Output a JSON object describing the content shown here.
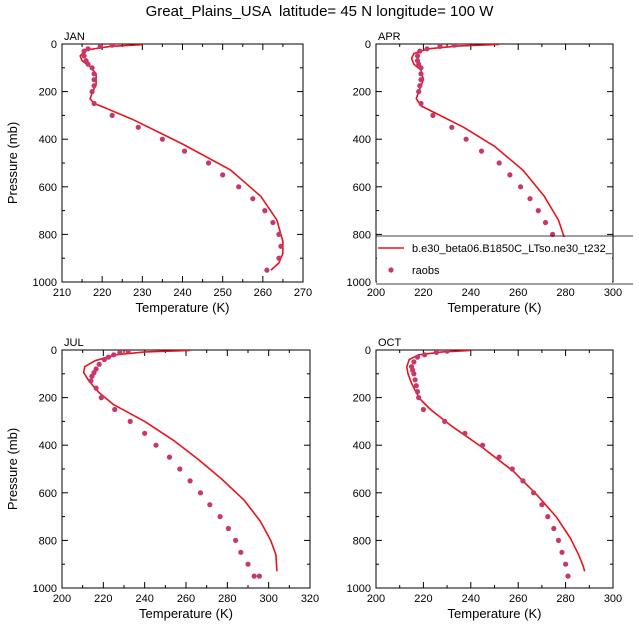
{
  "figure_title": "Great_Plains_USA  latitude= 45 N longitude= 100 W",
  "colors": {
    "model_line": "#e8141b",
    "raobs_marker": "#c8366a"
  },
  "legend": {
    "model_label": "b.e30_beta06.B1850C_LTso.ne30_t232_",
    "obs_label": "raobs",
    "placement": "right, lower half of APR panel"
  },
  "chart_data": [
    {
      "type": "line",
      "panel_label": "JAN",
      "xlabel": "Temperature (K)",
      "ylabel": "Pressure (mb)",
      "xlim": [
        210,
        270
      ],
      "xticks": [
        210,
        220,
        230,
        240,
        250,
        260,
        270
      ],
      "ylim": [
        1000,
        0
      ],
      "yticks": [
        0,
        200,
        400,
        600,
        800,
        1000
      ],
      "series": [
        {
          "name": "b.e30_beta06.B1850C_LTso.ne30_t232_",
          "style": "line",
          "x": [
            230,
            222,
            216,
            214.5,
            215,
            217,
            218.5,
            218.5,
            217.5,
            217,
            218,
            221,
            228,
            240,
            252,
            259.5,
            263.5,
            265,
            265,
            264,
            262
          ],
          "y": [
            3,
            10,
            25,
            50,
            70,
            95,
            125,
            170,
            205,
            230,
            250,
            270,
            320,
            420,
            530,
            640,
            740,
            830,
            880,
            920,
            950
          ]
        },
        {
          "name": "raobs",
          "style": "markers",
          "x": [
            222.5,
            219.5,
            216.5,
            215.5,
            215.5,
            216,
            216.5,
            217.5,
            218,
            218,
            218,
            217.5,
            218,
            222.5,
            229,
            235,
            240.5,
            246.5,
            250,
            254,
            257.5,
            260.5,
            262.5,
            264,
            264.5,
            264,
            261
          ],
          "y": [
            5,
            10,
            20,
            30,
            50,
            70,
            85,
            100,
            125,
            150,
            175,
            200,
            250,
            300,
            350,
            400,
            450,
            500,
            550,
            600,
            650,
            700,
            750,
            800,
            850,
            900,
            950
          ]
        }
      ]
    },
    {
      "type": "line",
      "panel_label": "APR",
      "xlabel": "Temperature (K)",
      "ylabel": "",
      "xlim": [
        200,
        300
      ],
      "xticks": [
        200,
        220,
        240,
        260,
        280,
        300
      ],
      "ylim": [
        1000,
        0
      ],
      "yticks": [
        0,
        200,
        400,
        600,
        800,
        1000
      ],
      "series": [
        {
          "name": "b.e30_beta06.B1850C_LTso.ne30_t232_",
          "style": "line",
          "x": [
            252,
            235,
            222,
            216,
            215,
            216,
            219,
            220,
            218,
            217,
            219,
            225,
            237,
            250,
            262,
            271,
            277,
            280,
            281.5,
            282,
            283
          ],
          "y": [
            2,
            8,
            20,
            40,
            60,
            85,
            110,
            150,
            200,
            230,
            260,
            290,
            350,
            430,
            530,
            640,
            740,
            830,
            880,
            920,
            950
          ]
        },
        {
          "name": "raobs",
          "style": "markers",
          "x": [
            233,
            227,
            221.5,
            218.5,
            217.5,
            217.5,
            218,
            219,
            219,
            219,
            218.5,
            218,
            219,
            224,
            232,
            238,
            244.5,
            252,
            256.5,
            261,
            265,
            268.5,
            271.5,
            274.5,
            276.5,
            279,
            280
          ],
          "y": [
            5,
            10,
            20,
            30,
            50,
            70,
            85,
            100,
            125,
            150,
            175,
            200,
            250,
            300,
            350,
            400,
            450,
            500,
            550,
            600,
            650,
            700,
            750,
            800,
            850,
            900,
            950
          ]
        }
      ]
    },
    {
      "type": "line",
      "panel_label": "JUL",
      "xlabel": "Temperature (K)",
      "ylabel": "Pressure (mb)",
      "xlim": [
        200,
        320
      ],
      "xticks": [
        200,
        220,
        240,
        260,
        280,
        300,
        320
      ],
      "ylim": [
        1000,
        0
      ],
      "yticks": [
        0,
        200,
        400,
        600,
        800,
        1000
      ],
      "series": [
        {
          "name": "b.e30_beta06.B1850C_LTso.ne30_t232_",
          "style": "line",
          "x": [
            262,
            240,
            226,
            216,
            211,
            210.5,
            213,
            218,
            225,
            240,
            254,
            266,
            277,
            288,
            296,
            301,
            303.5,
            304
          ],
          "y": [
            2,
            8,
            20,
            45,
            70,
            95,
            130,
            180,
            230,
            300,
            380,
            460,
            540,
            630,
            720,
            800,
            860,
            930
          ]
        },
        {
          "name": "raobs",
          "style": "markers",
          "x": [
            232,
            228,
            225,
            222.5,
            220.5,
            218,
            216.5,
            215.5,
            214.5,
            214,
            216.5,
            219,
            225.5,
            233,
            240,
            245.5,
            252,
            257,
            262,
            267,
            271.5,
            276.5,
            280.5,
            284,
            286.5,
            290,
            293,
            295.5
          ],
          "y": [
            5,
            10,
            20,
            30,
            40,
            60,
            80,
            95,
            110,
            130,
            160,
            200,
            250,
            300,
            350,
            400,
            450,
            500,
            550,
            600,
            650,
            700,
            750,
            800,
            850,
            900,
            950,
            950
          ]
        }
      ]
    },
    {
      "type": "line",
      "panel_label": "OCT",
      "xlabel": "Temperature (K)",
      "ylabel": "",
      "xlim": [
        200,
        300
      ],
      "xticks": [
        200,
        220,
        240,
        260,
        280,
        300
      ],
      "ylim": [
        1000,
        0
      ],
      "yticks": [
        0,
        200,
        400,
        600,
        800,
        1000
      ],
      "series": [
        {
          "name": "b.e30_beta06.B1850C_LTso.ne30_t232_",
          "style": "line",
          "x": [
            240,
            228,
            218,
            214,
            213,
            213.5,
            215,
            217,
            219,
            223,
            232,
            245,
            258,
            268,
            276,
            282,
            285.5,
            287.5,
            288
          ],
          "y": [
            2,
            8,
            20,
            40,
            70,
            100,
            140,
            180,
            210,
            250,
            320,
            410,
            510,
            610,
            700,
            790,
            860,
            910,
            930
          ]
        },
        {
          "name": "raobs",
          "style": "markers",
          "x": [
            230,
            225.5,
            220.5,
            217.5,
            216,
            215,
            215.5,
            216,
            216.5,
            217,
            217.5,
            218,
            220,
            229,
            237.5,
            245,
            252,
            257.5,
            262,
            266.5,
            270,
            272.5,
            275,
            277,
            278.5,
            280,
            281
          ],
          "y": [
            5,
            10,
            20,
            30,
            50,
            70,
            85,
            100,
            125,
            150,
            175,
            200,
            250,
            300,
            350,
            400,
            450,
            500,
            550,
            600,
            650,
            700,
            750,
            800,
            850,
            900,
            950
          ]
        }
      ]
    }
  ]
}
